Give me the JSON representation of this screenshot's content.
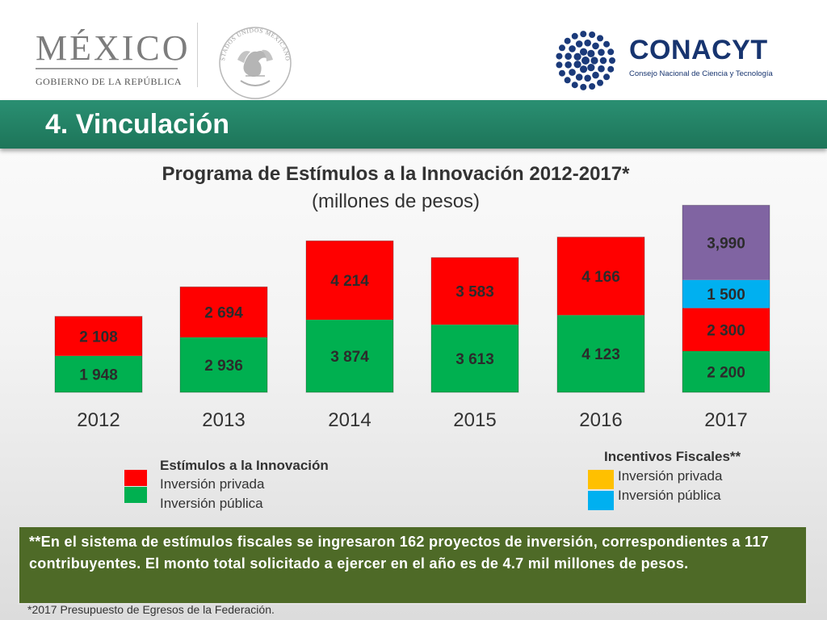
{
  "header": {
    "mexico_word": "MÉXICO",
    "mexico_sub": "GOBIERNO DE LA REPÚBLICA",
    "seal_text": "ESTADOS UNIDOS MEXICANOS",
    "conacyt_word": "CONACYT",
    "conacyt_sub": "Consejo Nacional de Ciencia y Tecnología"
  },
  "section_title": "4. Vinculación",
  "colors": {
    "title_band": "#1d7559",
    "privada_estimulos": "#ff0000",
    "publica_estimulos": "#00b050",
    "privada_incentivos": "#ffc000",
    "publica_incentivos": "#00b0f0",
    "presupuesto": "#8064a2",
    "note_box": "#4e6a27"
  },
  "chart_data": {
    "type": "bar",
    "stacked": true,
    "title": "Programa de Estímulos a la Innovación 2012-2017*",
    "subtitle": "(millones de pesos)",
    "categories": [
      "2012",
      "2013",
      "2014",
      "2015",
      "2016",
      "2017"
    ],
    "series": [
      {
        "name": "Inversión pública",
        "group": "Estímulos a la Innovación",
        "color": "#00b050",
        "values": [
          1948,
          2936,
          3874,
          3613,
          4123,
          null
        ],
        "labels": [
          "1 948",
          "2 936",
          "3 874",
          "3 613",
          "4 123",
          ""
        ]
      },
      {
        "name": "Inversión privada",
        "group": "Estímulos a la Innovación",
        "color": "#ff0000",
        "values": [
          2108,
          2694,
          4214,
          3583,
          4166,
          null
        ],
        "labels": [
          "2 108",
          "2 694",
          "4 214",
          "3 583",
          "4 166",
          ""
        ]
      },
      {
        "name": "",
        "color": "#00b050",
        "values": [
          null,
          null,
          null,
          null,
          null,
          2200
        ],
        "labels": [
          "",
          "",
          "",
          "",
          "",
          "2 200"
        ]
      },
      {
        "name": "",
        "color": "#ff0000",
        "values": [
          null,
          null,
          null,
          null,
          null,
          2300
        ],
        "labels": [
          "",
          "",
          "",
          "",
          "",
          "2 300"
        ]
      },
      {
        "name": "",
        "color": "#00b0f0",
        "values": [
          null,
          null,
          null,
          null,
          null,
          1500
        ],
        "labels": [
          "",
          "",
          "",
          "",
          "",
          "1 500"
        ]
      },
      {
        "name": "",
        "color": "#8064a2",
        "values": [
          null,
          null,
          null,
          null,
          null,
          3990
        ],
        "labels": [
          "",
          "",
          "",
          "",
          "",
          "3,990"
        ]
      }
    ],
    "ylim": [
      0,
      10000
    ],
    "grid": false,
    "legend_position": "bottom"
  },
  "legend": {
    "estimulos": {
      "title": "Estímulos a la Innovación",
      "items": [
        {
          "label": "Inversión privada",
          "color": "#ff0000"
        },
        {
          "label": "Inversión pública",
          "color": "#00b050"
        }
      ]
    },
    "incentivos": {
      "title": "Incentivos Fiscales**",
      "items": [
        {
          "label": "Inversión privada",
          "color": "#ffc000"
        },
        {
          "label": "Inversión pública",
          "color": "#00b0f0"
        }
      ]
    }
  },
  "note": "**En el sistema de estímulos fiscales se ingresaron 162 proyectos de inversión, correspondientes a 117 contribuyentes. El monto total solicitado a ejercer en el año es de 4.7 mil millones de pesos.",
  "footnote": "*2017 Presupuesto de Egresos de la Federación."
}
